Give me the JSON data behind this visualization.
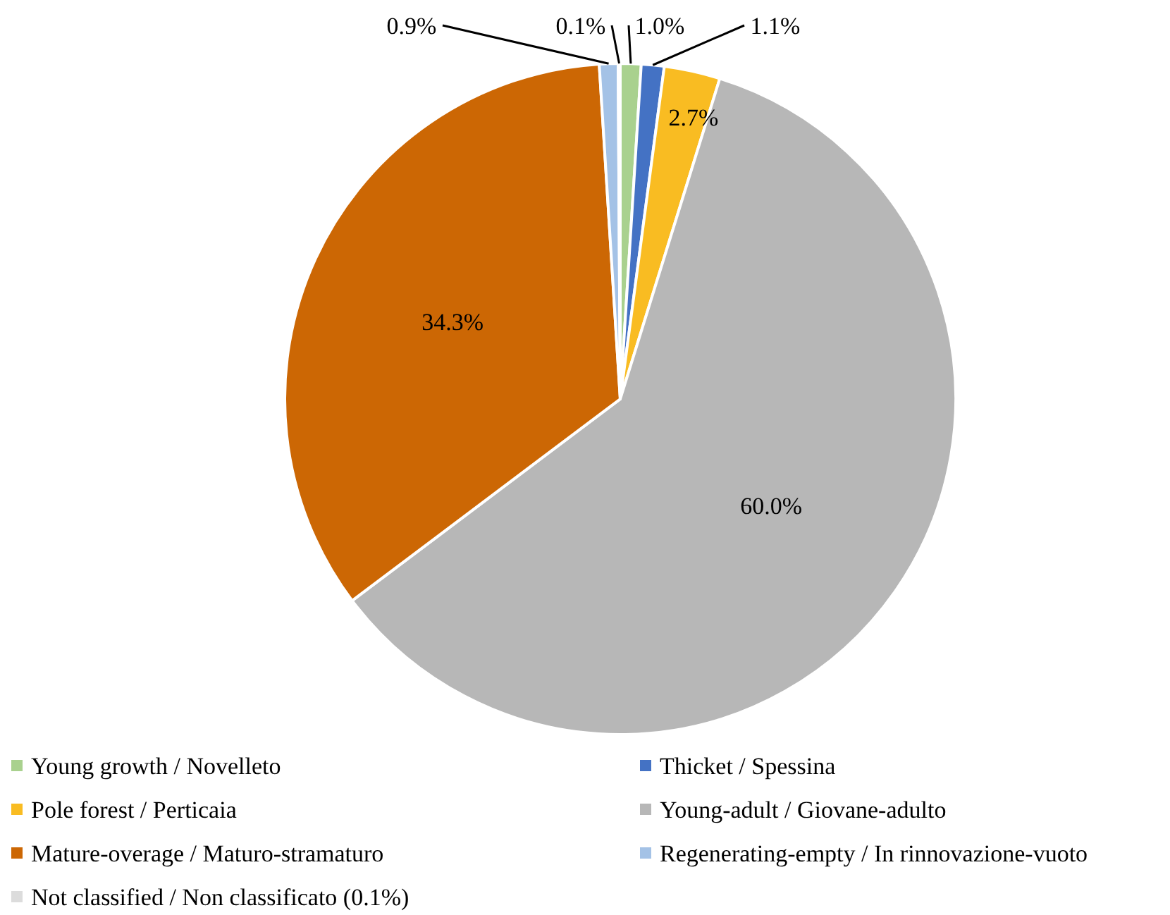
{
  "chart_data": {
    "type": "pie",
    "categories": [
      "Young growth / Novelleto",
      "Thicket / Spessina",
      "Pole forest / Perticaia",
      "Young-adult / Giovane-adulto",
      "Mature-overage / Maturo-stramaturo",
      "Regenerating-empty / In rinnovazione-vuoto",
      "Not classified / Non classificato (0.1%)"
    ],
    "values": [
      1.0,
      1.1,
      2.7,
      60.0,
      34.3,
      0.9,
      0.1
    ],
    "colors": [
      "#a9d18e",
      "#4472c4",
      "#f9bc22",
      "#b7b7b7",
      "#cc6704",
      "#a4c2e6",
      "#dcdcdc"
    ],
    "value_labels": [
      "1.0%",
      "1.1%",
      "2.7%",
      "60.0%",
      "34.3%",
      "0.9%",
      "0.1%"
    ],
    "legend": "bottom"
  }
}
